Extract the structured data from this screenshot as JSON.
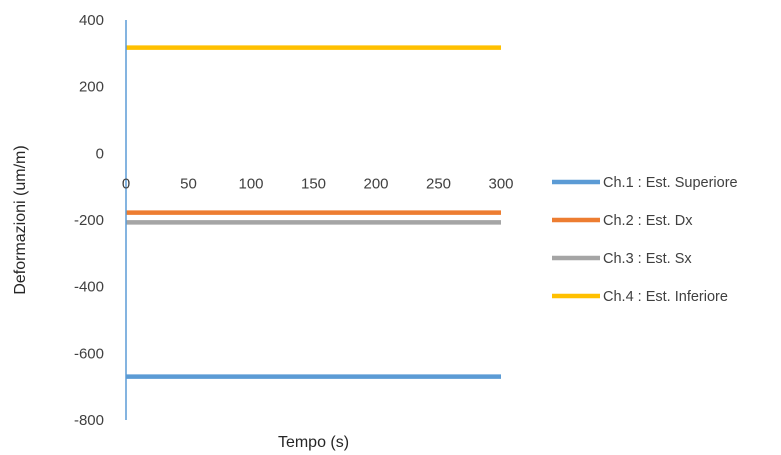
{
  "chart_data": {
    "type": "line",
    "title": "",
    "xlabel": "Tempo (s)",
    "ylabel": "Deformazioni (um/m)",
    "xlim": [
      0,
      300
    ],
    "ylim": [
      -800,
      400
    ],
    "x_ticks": [
      0,
      50,
      100,
      150,
      200,
      250,
      300
    ],
    "y_ticks": [
      400,
      200,
      0,
      -200,
      -400,
      -600,
      -800
    ],
    "x_tick_labels": [
      "0",
      "50",
      "100",
      "150",
      "200",
      "250",
      "300"
    ],
    "y_tick_labels": [
      "400",
      "200",
      "0",
      "-200",
      "-400",
      "-600",
      "-800"
    ],
    "grid": false,
    "legend_position": "right",
    "x": [
      0,
      300
    ],
    "series": [
      {
        "name": "Ch.1 : Est. Superiore",
        "color": "#5B9BD5",
        "values": [
          -670,
          -670
        ]
      },
      {
        "name": "Ch.2 : Est. Dx",
        "color": "#ED7D31",
        "values": [
          -178,
          -178
        ]
      },
      {
        "name": "Ch.3 : Est. Sx",
        "color": "#A5A5A5",
        "values": [
          -207,
          -207
        ]
      },
      {
        "name": "Ch.4 : Est. Inferiore",
        "color": "#FFC000",
        "values": [
          317,
          317
        ]
      }
    ]
  }
}
